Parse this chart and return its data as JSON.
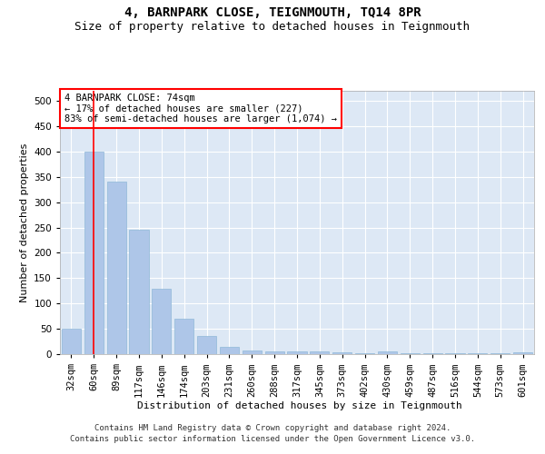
{
  "title": "4, BARNPARK CLOSE, TEIGNMOUTH, TQ14 8PR",
  "subtitle": "Size of property relative to detached houses in Teignmouth",
  "xlabel": "Distribution of detached houses by size in Teignmouth",
  "ylabel": "Number of detached properties",
  "categories": [
    "32sqm",
    "60sqm",
    "89sqm",
    "117sqm",
    "146sqm",
    "174sqm",
    "203sqm",
    "231sqm",
    "260sqm",
    "288sqm",
    "317sqm",
    "345sqm",
    "373sqm",
    "402sqm",
    "430sqm",
    "459sqm",
    "487sqm",
    "516sqm",
    "544sqm",
    "573sqm",
    "601sqm"
  ],
  "values": [
    50,
    400,
    340,
    245,
    130,
    70,
    35,
    15,
    7,
    5,
    5,
    5,
    3,
    2,
    5,
    2,
    2,
    2,
    2,
    2,
    4
  ],
  "bar_color": "#aec6e8",
  "bar_edge_color": "#8fb8d8",
  "vline_x": 1,
  "vline_color": "red",
  "annotation_text": "4 BARNPARK CLOSE: 74sqm\n← 17% of detached houses are smaller (227)\n83% of semi-detached houses are larger (1,074) →",
  "annotation_box_color": "white",
  "annotation_box_edge_color": "red",
  "ylim": [
    0,
    520
  ],
  "yticks": [
    0,
    50,
    100,
    150,
    200,
    250,
    300,
    350,
    400,
    450,
    500
  ],
  "background_color": "#dde8f5",
  "grid_color": "white",
  "footer1": "Contains HM Land Registry data © Crown copyright and database right 2024.",
  "footer2": "Contains public sector information licensed under the Open Government Licence v3.0.",
  "title_fontsize": 10,
  "subtitle_fontsize": 9,
  "axis_label_fontsize": 8,
  "tick_fontsize": 7.5,
  "annotation_fontsize": 7.5,
  "footer_fontsize": 6.5
}
